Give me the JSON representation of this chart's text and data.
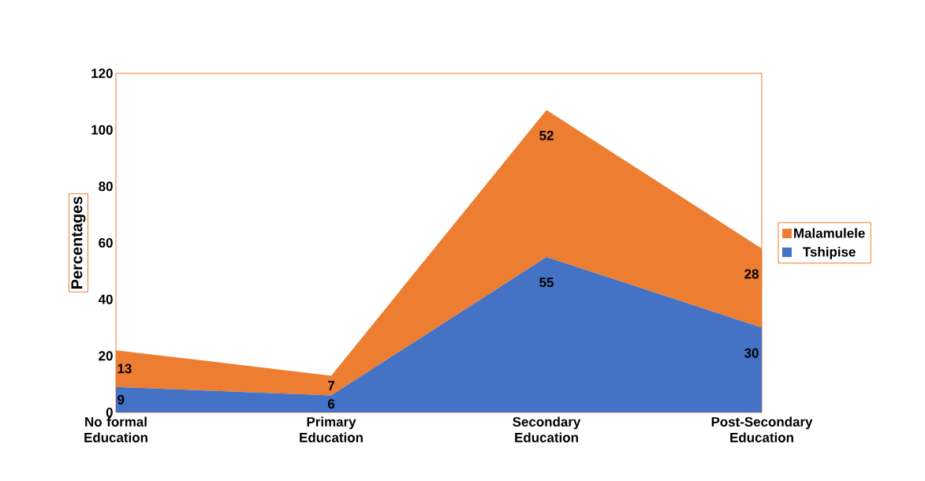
{
  "chart_data": {
    "type": "area",
    "stacked": true,
    "ylabel": "Percentages",
    "categories": [
      "No formal Education",
      "Primary Education",
      "Secondary Education",
      "Post-Secondary Education"
    ],
    "series": [
      {
        "name": "Tshipise",
        "color": "#4472c4",
        "values": [
          9,
          6,
          55,
          30
        ]
      },
      {
        "name": "Malamulele",
        "color": "#ed7d31",
        "values": [
          13,
          7,
          52,
          28
        ]
      }
    ],
    "ylim": [
      0,
      120
    ],
    "yticks": [
      0,
      20,
      40,
      60,
      80,
      100,
      120
    ],
    "data_labels": true,
    "legend": "right",
    "grid": false
  }
}
